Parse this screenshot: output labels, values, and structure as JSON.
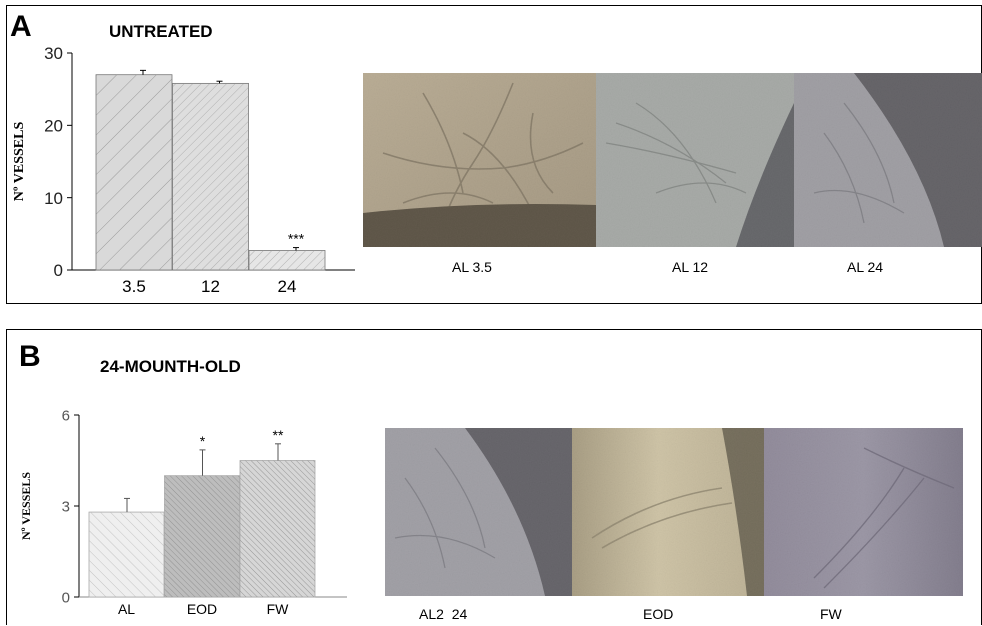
{
  "panel_a": {
    "letter": "A",
    "title": "UNTREATED",
    "captions": [
      "AL 3.5",
      "AL 12",
      "AL 24"
    ]
  },
  "panel_b": {
    "letter": "B",
    "title": "24-MOUNTH-OLD",
    "captions": [
      "AL2  24",
      "EOD",
      "FW"
    ]
  },
  "chart_data": [
    {
      "type": "bar",
      "title": "UNTREATED",
      "categories": [
        "3.5",
        "12",
        "24"
      ],
      "values": [
        27,
        25.8,
        2.7
      ],
      "errors": [
        0.6,
        0.3,
        0.4
      ],
      "significance": [
        "",
        "",
        "***"
      ],
      "ylabel": "Nº VESSELS",
      "xlabel": "",
      "ylim": [
        0,
        30
      ],
      "yticks": [
        0,
        10,
        20,
        30
      ],
      "grid": false,
      "fills": [
        "#d9d9d9",
        "#dedede",
        "#e6e6e6"
      ]
    },
    {
      "type": "bar",
      "title": "24-MOUNTH-OLD",
      "categories": [
        "AL",
        "EOD",
        "FW"
      ],
      "values": [
        2.8,
        4.0,
        4.5
      ],
      "errors": [
        0.45,
        0.85,
        0.55
      ],
      "significance": [
        "",
        "*",
        "**"
      ],
      "ylabel": "Nº VESSELS",
      "xlabel": "",
      "ylim": [
        0,
        6
      ],
      "yticks": [
        0,
        3,
        6
      ],
      "grid": false,
      "fills": [
        "#efefef",
        "#bdbdbd",
        "#d6d6d6"
      ]
    }
  ]
}
